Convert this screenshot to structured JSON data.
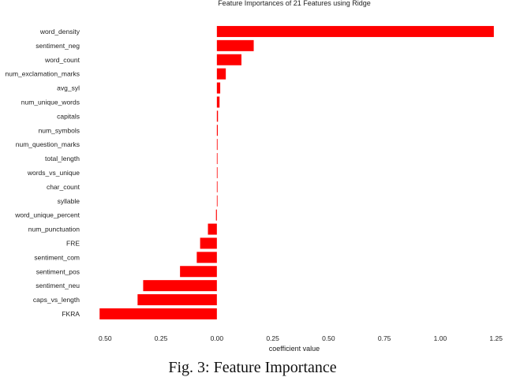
{
  "chart_data": {
    "type": "bar",
    "orientation": "horizontal",
    "title": "Feature Importances of 21 Features using Ridge",
    "xlabel": "coefficient value",
    "ylabel": "",
    "xlim": [
      -0.6,
      1.29
    ],
    "xticks": [
      -0.5,
      -0.25,
      0.0,
      0.25,
      0.5,
      0.75,
      1.0,
      1.25
    ],
    "xtick_labels": [
      "0.50",
      "0.25",
      "0.00",
      "0.25",
      "0.50",
      "0.75",
      "1.00",
      "1.25"
    ],
    "grid": false,
    "bar_color": "#ff0000",
    "categories": [
      "word_density",
      "sentiment_neg",
      "word_count",
      "num_exclamation_marks",
      "avg_syl",
      "num_unique_words",
      "capitals",
      "num_symbols",
      "num_question_marks",
      "total_length",
      "words_vs_unique",
      "char_count",
      "syllable",
      "word_unique_percent",
      "num_punctuation",
      "FRE",
      "sentiment_com",
      "sentiment_pos",
      "sentiment_neu",
      "caps_vs_length",
      "FKRA"
    ],
    "values": [
      1.24,
      0.165,
      0.11,
      0.04,
      0.015,
      0.012,
      0.005,
      0.004,
      0.003,
      0.002,
      0.0,
      0.0,
      0.0,
      -0.004,
      -0.04,
      -0.075,
      -0.09,
      -0.165,
      -0.33,
      -0.355,
      -0.525
    ]
  },
  "caption": "Fig. 3: Feature Importance"
}
